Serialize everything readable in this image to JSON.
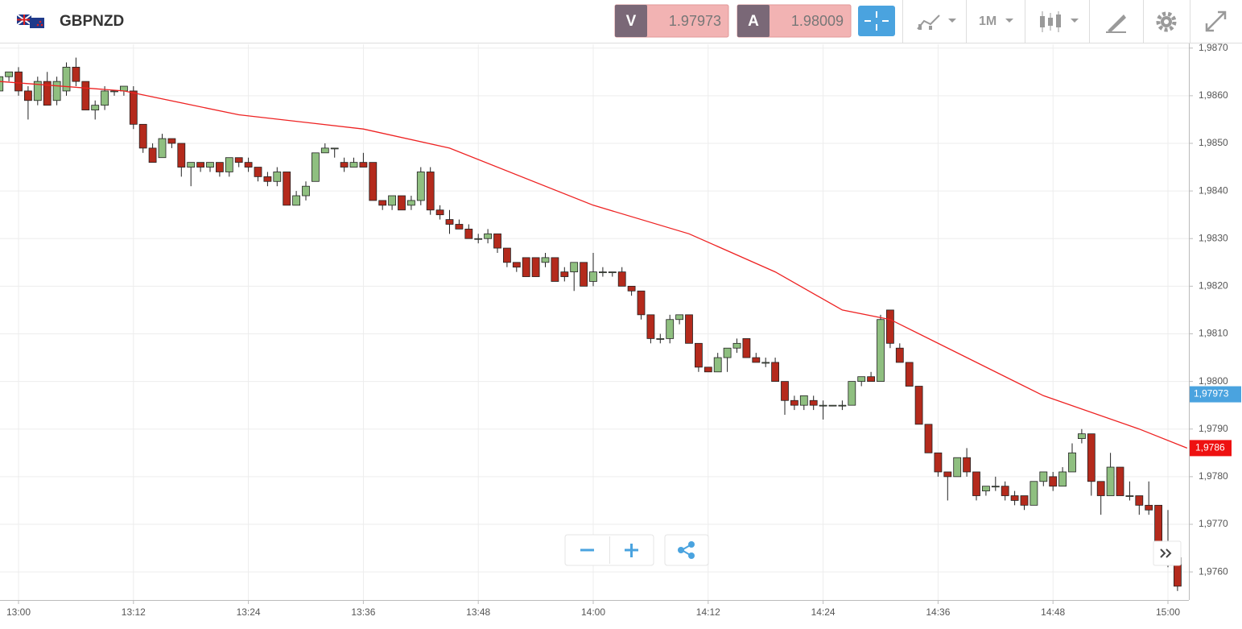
{
  "header": {
    "symbol": "GBPNZD",
    "bid_label": "V",
    "bid": "1.97973",
    "ask_label": "A",
    "ask": "1.98009",
    "timeframe": "1M"
  },
  "chart_data": {
    "type": "candlestick",
    "categories": [
      null,
      null,
      "13:00",
      null,
      null,
      null,
      null,
      null,
      null,
      null,
      null,
      null,
      null,
      null,
      "13:12",
      null,
      null,
      null,
      null,
      null,
      null,
      null,
      null,
      null,
      null,
      null,
      "13:24",
      null,
      null,
      null,
      null,
      null,
      null,
      null,
      null,
      null,
      null,
      null,
      "13:36",
      null,
      null,
      null,
      null,
      null,
      null,
      null,
      null,
      null,
      null,
      null,
      "13:48",
      null,
      null,
      null,
      null,
      null,
      null,
      null,
      null,
      null,
      null,
      null,
      "14:00",
      null,
      null,
      null,
      null,
      null,
      null,
      null,
      null,
      null,
      null,
      null,
      "14:12",
      null,
      null,
      null,
      null,
      null,
      null,
      null,
      null,
      null,
      null,
      null,
      "14:24",
      null,
      null,
      null,
      null,
      null,
      null,
      null,
      null,
      null,
      null,
      null,
      "14:36",
      null,
      null,
      null,
      null,
      null,
      null,
      null,
      null,
      null,
      null,
      null,
      "14:48",
      null,
      null,
      null,
      null,
      null,
      null,
      null,
      null,
      null,
      null,
      null,
      "15:00",
      null
    ],
    "open": [
      1.9861,
      1.9864,
      1.9865,
      1.9861,
      1.9859,
      1.9863,
      1.9859,
      1.9861,
      1.9866,
      1.9863,
      1.9857,
      1.9858,
      1.9861,
      1.9861,
      1.9861,
      1.9854,
      1.9849,
      1.9847,
      1.9851,
      1.985,
      1.9845,
      1.9846,
      1.9845,
      1.9846,
      1.9844,
      1.9847,
      1.9846,
      1.9845,
      1.9843,
      1.9842,
      1.9844,
      1.9837,
      1.9839,
      1.9842,
      1.9848,
      1.9849,
      1.9846,
      1.9845,
      1.9846,
      1.9846,
      1.9838,
      1.9837,
      1.9839,
      1.9837,
      1.9838,
      1.9844,
      1.9836,
      1.9834,
      1.9833,
      1.9832,
      1.983,
      1.983,
      1.9831,
      1.9828,
      1.9825,
      1.9826,
      1.9826,
      1.9825,
      1.9826,
      1.9823,
      1.9823,
      1.9825,
      1.9821,
      1.9823,
      1.9823,
      1.9823,
      1.982,
      1.9819,
      1.9814,
      1.9809,
      1.9809,
      1.9813,
      1.9814,
      1.9808,
      1.9803,
      1.9802,
      1.9805,
      1.9807,
      1.9809,
      1.9805,
      1.9804,
      1.9804,
      1.98,
      1.9796,
      1.9795,
      1.9796,
      1.9795,
      1.9795,
      1.9795,
      1.9795,
      1.98,
      1.9801,
      1.98,
      1.9815,
      1.9807,
      1.9804,
      1.9799,
      1.9791,
      1.9785,
      1.9781,
      1.978,
      1.9784,
      1.9781,
      1.9777,
      1.9778,
      1.9778,
      1.9776,
      1.9776,
      1.9774,
      1.9779,
      1.978,
      1.9778,
      1.9781,
      1.9788,
      1.9789,
      1.9779,
      1.9776,
      1.9782,
      1.9776,
      1.9776,
      1.9774,
      1.9774,
      1.9766,
      1.9763
    ],
    "high": [
      1.9865,
      1.9865,
      1.9866,
      1.9862,
      1.9864,
      1.9865,
      1.9864,
      1.9867,
      1.9868,
      1.9863,
      1.9859,
      1.9862,
      1.9861,
      1.9862,
      1.9862,
      1.9854,
      1.985,
      1.9852,
      1.9851,
      1.985,
      1.9846,
      1.9846,
      1.9846,
      1.9846,
      1.9847,
      1.9847,
      1.9847,
      1.9845,
      1.9844,
      1.9845,
      1.9844,
      1.984,
      1.9842,
      1.9848,
      1.985,
      1.9849,
      1.9847,
      1.9847,
      1.9848,
      1.9846,
      1.9838,
      1.9839,
      1.9839,
      1.9839,
      1.9845,
      1.9845,
      1.9837,
      1.9836,
      1.9834,
      1.9833,
      1.9831,
      1.9832,
      1.9831,
      1.9828,
      1.9825,
      1.9826,
      1.9826,
      1.9827,
      1.9826,
      1.9824,
      1.9825,
      1.9825,
      1.9827,
      1.9824,
      1.9823,
      1.9824,
      1.982,
      1.9819,
      1.9814,
      1.981,
      1.9814,
      1.9814,
      1.9814,
      1.9808,
      1.9803,
      1.9806,
      1.9807,
      1.9809,
      1.9809,
      1.9806,
      1.9805,
      1.9805,
      1.98,
      1.9797,
      1.9797,
      1.9797,
      1.9796,
      1.9795,
      1.9796,
      1.98,
      1.9801,
      1.9802,
      1.9814,
      1.9815,
      1.9808,
      1.9804,
      1.9799,
      1.9791,
      1.9785,
      1.9781,
      1.9784,
      1.9786,
      1.9781,
      1.9778,
      1.978,
      1.9779,
      1.9777,
      1.9776,
      1.9779,
      1.9781,
      1.9781,
      1.9782,
      1.9787,
      1.979,
      1.9789,
      1.9779,
      1.9785,
      1.9782,
      1.9779,
      1.9776,
      1.9779,
      1.9774,
      1.9773,
      1.9763
    ],
    "low": [
      1.986,
      1.9863,
      1.986,
      1.9855,
      1.9858,
      1.9858,
      1.9858,
      1.986,
      1.9862,
      1.9857,
      1.9855,
      1.9857,
      1.986,
      1.986,
      1.9853,
      1.9848,
      1.9846,
      1.9847,
      1.9849,
      1.9843,
      1.9841,
      1.9844,
      1.9844,
      1.9843,
      1.9843,
      1.9845,
      1.9844,
      1.9842,
      1.9841,
      1.9841,
      1.9837,
      1.9837,
      1.9838,
      1.9842,
      1.9848,
      1.9847,
      1.9844,
      1.9845,
      1.9845,
      1.9838,
      1.9836,
      1.9836,
      1.9836,
      1.9836,
      1.9837,
      1.9835,
      1.9834,
      1.9831,
      1.9832,
      1.983,
      1.9829,
      1.9829,
      1.9827,
      1.9824,
      1.9823,
      1.9822,
      1.9822,
      1.9824,
      1.9821,
      1.9821,
      1.9819,
      1.982,
      1.982,
      1.9822,
      1.9822,
      1.982,
      1.9818,
      1.9813,
      1.9808,
      1.9808,
      1.9808,
      1.9812,
      1.9808,
      1.9802,
      1.9802,
      1.9802,
      1.9802,
      1.9806,
      1.9805,
      1.9804,
      1.9803,
      1.98,
      1.9793,
      1.9794,
      1.9794,
      1.9794,
      1.9792,
      1.9795,
      1.9794,
      1.9795,
      1.9799,
      1.98,
      1.98,
      1.9807,
      1.9804,
      1.9799,
      1.9791,
      1.9785,
      1.978,
      1.9775,
      1.978,
      1.978,
      1.9775,
      1.9776,
      1.9777,
      1.9775,
      1.9774,
      1.9773,
      1.9774,
      1.9778,
      1.9777,
      1.9778,
      1.9781,
      1.9787,
      1.9776,
      1.9772,
      1.9776,
      1.9776,
      1.9775,
      1.9772,
      1.9772,
      1.9765,
      1.9761,
      1.9756
    ],
    "close": [
      1.9864,
      1.9865,
      1.9861,
      1.9859,
      1.9863,
      1.9858,
      1.9863,
      1.9866,
      1.9863,
      1.9857,
      1.9858,
      1.9861,
      1.9861,
      1.9862,
      1.9854,
      1.9849,
      1.9846,
      1.9851,
      1.985,
      1.9845,
      1.9846,
      1.9845,
      1.9846,
      1.9844,
      1.9847,
      1.9846,
      1.9845,
      1.9843,
      1.9842,
      1.9844,
      1.9837,
      1.9839,
      1.9841,
      1.9848,
      1.9849,
      1.9849,
      1.9845,
      1.9846,
      1.9845,
      1.9838,
      1.9837,
      1.9839,
      1.9836,
      1.9838,
      1.9844,
      1.9836,
      1.9835,
      1.9833,
      1.9832,
      1.983,
      1.983,
      1.9831,
      1.9828,
      1.9825,
      1.9824,
      1.9822,
      1.9822,
      1.9826,
      1.9821,
      1.9822,
      1.9825,
      1.982,
      1.9823,
      1.9823,
      1.9823,
      1.982,
      1.9819,
      1.9814,
      1.9809,
      1.9809,
      1.9813,
      1.9814,
      1.9808,
      1.9803,
      1.9802,
      1.9805,
      1.9807,
      1.9808,
      1.9805,
      1.9804,
      1.9804,
      1.98,
      1.9796,
      1.9795,
      1.9797,
      1.9795,
      1.9795,
      1.9795,
      1.9795,
      1.98,
      1.9801,
      1.98,
      1.9813,
      1.9808,
      1.9804,
      1.9799,
      1.9791,
      1.9785,
      1.9781,
      1.978,
      1.9784,
      1.9781,
      1.9776,
      1.9778,
      1.9778,
      1.9776,
      1.9775,
      1.9774,
      1.9779,
      1.9781,
      1.9778,
      1.9781,
      1.9785,
      1.9789,
      1.9779,
      1.9776,
      1.9782,
      1.9776,
      1.9776,
      1.9774,
      1.9773,
      1.9766,
      1.9762,
      1.9757
    ],
    "up_color": "#8fbf80",
    "down_color": "#b42a1c",
    "moving_average": {
      "color": "#ee2222",
      "x": [
        0,
        13,
        25,
        38,
        47,
        62,
        72,
        81,
        88,
        93,
        101,
        109,
        119,
        124
      ],
      "values": [
        1.9863,
        1.9861,
        1.9856,
        1.9853,
        1.9849,
        1.9837,
        1.9831,
        1.9823,
        1.9815,
        1.9813,
        1.9805,
        1.9797,
        1.979,
        1.9786
      ],
      "last_label": "1,9786"
    },
    "price_marker": {
      "value": 1.97973,
      "label": "1,97973",
      "color": "#4aa3df"
    },
    "ylim": [
      1.97541,
      1.98708
    ],
    "yticks": [
      {
        "value": 1.976,
        "label": "1,9760"
      },
      {
        "value": 1.977,
        "label": "1,9770"
      },
      {
        "value": 1.978,
        "label": "1,9780"
      },
      {
        "value": 1.979,
        "label": "1,9790"
      },
      {
        "value": 1.98,
        "label": "1,9800"
      },
      {
        "value": 1.981,
        "label": "1,9810"
      },
      {
        "value": 1.982,
        "label": "1,9820"
      },
      {
        "value": 1.983,
        "label": "1,9830"
      },
      {
        "value": 1.984,
        "label": "1,9840"
      },
      {
        "value": 1.985,
        "label": "1,9850"
      },
      {
        "value": 1.986,
        "label": "1,9860"
      },
      {
        "value": 1.987,
        "label": "1,9870"
      }
    ],
    "grid": true
  }
}
